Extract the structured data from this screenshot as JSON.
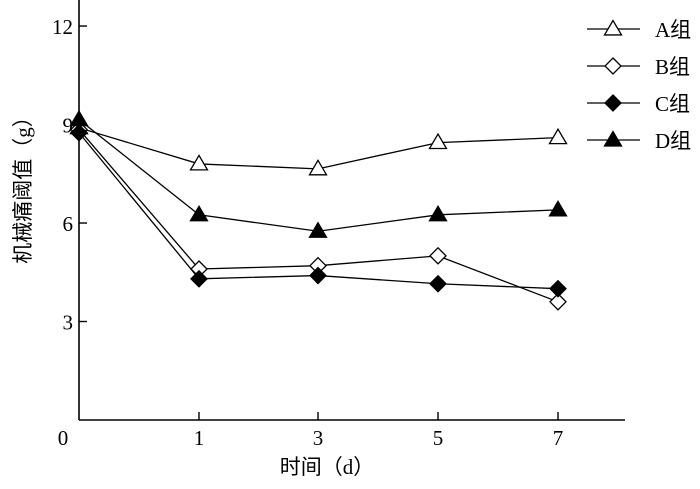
{
  "chart_data": {
    "type": "line",
    "title": "",
    "xlabel": "时间（d）",
    "ylabel": "机械痛阈值（g）",
    "x": [
      0,
      1,
      3,
      5,
      7
    ],
    "x_tick_labels": [
      "0",
      "1",
      "3",
      "5",
      "7"
    ],
    "y_tick_labels": [
      "3",
      "6",
      "9",
      "12"
    ],
    "y_ticks": [
      3,
      6,
      9,
      12
    ],
    "ylim": [
      0,
      12.5
    ],
    "grid": false,
    "legend_position": "top-right",
    "series": [
      {
        "name": "A组",
        "marker": "triangle-open",
        "values": [
          8.9,
          7.8,
          7.65,
          8.45,
          8.6
        ]
      },
      {
        "name": "B组",
        "marker": "diamond-open",
        "values": [
          8.85,
          4.6,
          4.7,
          5.0,
          3.6
        ]
      },
      {
        "name": "C组",
        "marker": "diamond-filled",
        "values": [
          8.75,
          4.3,
          4.4,
          4.15,
          4.0
        ]
      },
      {
        "name": "D组",
        "marker": "triangle-filled",
        "values": [
          9.15,
          6.25,
          5.75,
          6.25,
          6.4
        ]
      }
    ],
    "colors": {
      "line": "#000000",
      "background": "#ffffff"
    }
  }
}
